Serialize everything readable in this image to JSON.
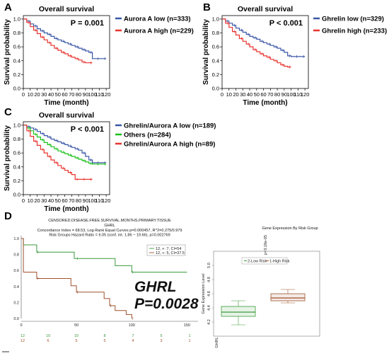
{
  "colors": {
    "low": "#3a57a7",
    "high": "#e8342f",
    "others": "#19c119",
    "d_low": "#3c9a3c",
    "d_high": "#a0522d"
  },
  "chart_data": [
    {
      "panel": "A",
      "type": "line",
      "title": "Overall survival",
      "xlabel": "Time (month)",
      "ylabel": "Survival probability",
      "xlim": [
        0,
        125
      ],
      "ylim": [
        0,
        1.05
      ],
      "xticks": [
        "0",
        "10",
        "20",
        "30",
        "40",
        "50",
        "60",
        "70",
        "80",
        "90",
        "100",
        "110",
        "120"
      ],
      "yticks": [
        "0.0",
        "0.2",
        "0.4",
        "0.6",
        "0.8",
        "1.0"
      ],
      "pvalue": "P = 0.001",
      "series": [
        {
          "name": "Aurora A low (n=333)",
          "color": "#3a57a7",
          "x": [
            0,
            5,
            10,
            15,
            20,
            25,
            30,
            35,
            40,
            45,
            50,
            55,
            60,
            65,
            70,
            75,
            80,
            85,
            90,
            95,
            100,
            105,
            110,
            115,
            120
          ],
          "y": [
            1.0,
            0.97,
            0.93,
            0.9,
            0.86,
            0.83,
            0.8,
            0.78,
            0.75,
            0.72,
            0.7,
            0.68,
            0.66,
            0.64,
            0.62,
            0.6,
            0.58,
            0.56,
            0.54,
            0.52,
            0.43,
            0.43,
            0.43,
            0.43,
            0.43
          ]
        },
        {
          "name": "Aurora A high (n=229)",
          "color": "#e8342f",
          "x": [
            0,
            5,
            10,
            15,
            20,
            25,
            30,
            35,
            40,
            45,
            50,
            55,
            60,
            65,
            70,
            75,
            80,
            85,
            90,
            95,
            100
          ],
          "y": [
            1.0,
            0.95,
            0.89,
            0.84,
            0.79,
            0.74,
            0.7,
            0.66,
            0.62,
            0.58,
            0.55,
            0.52,
            0.5,
            0.47,
            0.45,
            0.43,
            0.41,
            0.38,
            0.37,
            0.37,
            0.37
          ]
        }
      ]
    },
    {
      "panel": "B",
      "type": "line",
      "title": "Overall survival",
      "xlabel": "Time (month)",
      "ylabel": "Survival probability",
      "xlim": [
        0,
        125
      ],
      "ylim": [
        0,
        1.05
      ],
      "xticks": [
        "0",
        "10",
        "20",
        "30",
        "40",
        "50",
        "60",
        "70",
        "80",
        "90",
        "100",
        "110",
        "120"
      ],
      "yticks": [
        "0.0",
        "0.2",
        "0.4",
        "0.6",
        "0.8",
        "1.0"
      ],
      "pvalue": "P < 0.001",
      "series": [
        {
          "name": "Ghrelin low (n=329)",
          "color": "#3a57a7",
          "x": [
            0,
            5,
            10,
            15,
            20,
            25,
            30,
            35,
            40,
            45,
            50,
            55,
            60,
            65,
            70,
            75,
            80,
            85,
            90,
            95,
            100,
            105,
            110,
            115,
            120
          ],
          "y": [
            1.0,
            0.97,
            0.94,
            0.91,
            0.87,
            0.84,
            0.81,
            0.78,
            0.75,
            0.73,
            0.71,
            0.68,
            0.66,
            0.64,
            0.62,
            0.6,
            0.58,
            0.55,
            0.52,
            0.47,
            0.46,
            0.46,
            0.46,
            0.46,
            0.46
          ]
        },
        {
          "name": "Ghrelin high (n=233)",
          "color": "#e8342f",
          "x": [
            0,
            5,
            10,
            15,
            20,
            25,
            30,
            35,
            40,
            45,
            50,
            55,
            60,
            65,
            70,
            75,
            80,
            85,
            90,
            95,
            100
          ],
          "y": [
            1.0,
            0.94,
            0.88,
            0.82,
            0.77,
            0.72,
            0.68,
            0.64,
            0.6,
            0.56,
            0.53,
            0.5,
            0.47,
            0.45,
            0.42,
            0.4,
            0.37,
            0.34,
            0.32,
            0.31,
            0.31
          ]
        }
      ]
    },
    {
      "panel": "C",
      "type": "line",
      "title": "Overall survival",
      "xlabel": "Time (month)",
      "ylabel": "Survival probability",
      "xlim": [
        0,
        125
      ],
      "ylim": [
        0,
        1.05
      ],
      "xticks": [
        "0",
        "10",
        "20",
        "30",
        "40",
        "50",
        "60",
        "70",
        "80",
        "90",
        "100",
        "110",
        "120"
      ],
      "yticks": [
        "0.0",
        "0.2",
        "0.4",
        "0.6",
        "0.8",
        "1.0"
      ],
      "pvalue": "P < 0.001",
      "series": [
        {
          "name": "Ghrelin/Aurora A low (n=189)",
          "color": "#3a57a7",
          "x": [
            0,
            5,
            10,
            15,
            20,
            25,
            30,
            35,
            40,
            45,
            50,
            55,
            60,
            65,
            70,
            75,
            80,
            85,
            90,
            95,
            100,
            105,
            110,
            115,
            120
          ],
          "y": [
            1.0,
            0.98,
            0.96,
            0.94,
            0.91,
            0.88,
            0.85,
            0.83,
            0.8,
            0.78,
            0.76,
            0.74,
            0.72,
            0.7,
            0.68,
            0.66,
            0.64,
            0.6,
            0.55,
            0.5,
            0.46,
            0.46,
            0.46,
            0.46,
            0.46
          ]
        },
        {
          "name": "Others (n=284)",
          "color": "#19c119",
          "x": [
            0,
            5,
            10,
            15,
            20,
            25,
            30,
            35,
            40,
            45,
            50,
            55,
            60,
            65,
            70,
            75,
            80,
            85,
            90,
            95,
            100,
            105,
            110,
            115,
            120
          ],
          "y": [
            1.0,
            0.96,
            0.92,
            0.87,
            0.83,
            0.79,
            0.75,
            0.72,
            0.69,
            0.66,
            0.63,
            0.61,
            0.59,
            0.57,
            0.55,
            0.53,
            0.51,
            0.49,
            0.47,
            0.45,
            0.44,
            0.44,
            0.44,
            0.44,
            0.44
          ]
        },
        {
          "name": "Ghrelin/Aurora A high (n=89)",
          "color": "#e8342f",
          "x": [
            0,
            5,
            10,
            15,
            20,
            25,
            30,
            35,
            40,
            45,
            50,
            55,
            60,
            65,
            70,
            75,
            80,
            85,
            90,
            95,
            100
          ],
          "y": [
            1.0,
            0.92,
            0.84,
            0.77,
            0.71,
            0.65,
            0.6,
            0.55,
            0.5,
            0.46,
            0.42,
            0.38,
            0.35,
            0.32,
            0.29,
            0.22,
            0.22,
            0.22,
            0.22,
            0.22,
            0.22
          ]
        }
      ]
    },
    {
      "panel": "D-left",
      "type": "line",
      "title": "CENSORED.DISEASE.FREE.SURVIVAL.MONTHS.PRIMARY.TISSUE",
      "subtitle": "GHRL",
      "stats": [
        "Concordance Index = 68.53, Log-Rank Equal Curves p=0.000457, R^2=0.275/0.979",
        "Risk Groups Hazard Ratio = 6.05 (conf. int. 1.86 ~ 19.66), p=0.002769"
      ],
      "xlim": [
        0,
        160
      ],
      "ylim": [
        0,
        1.0
      ],
      "xticks": [
        "0",
        "50",
        "100",
        "150"
      ],
      "yticks": [
        "1.0",
        "0.8",
        "0.6",
        "0.4",
        "0.2",
        "0.0"
      ],
      "annotation_gene": "GHRL",
      "annotation_p": "P=0.0028",
      "legend": [
        "12, +: 7, CI=54",
        "12, +: 5, CI=37.5"
      ],
      "risk_table_low": [
        "12",
        "10",
        "10",
        "8",
        "7",
        "5",
        "1"
      ],
      "risk_table_high": [
        "12",
        "6",
        "5",
        "5",
        "4",
        "3",
        "1"
      ],
      "series": [
        {
          "name": "12, +: 7, CI=54",
          "color": "#3c9a3c",
          "x": [
            0,
            2,
            5,
            14,
            45,
            48,
            50,
            85,
            95,
            100,
            110,
            150
          ],
          "y": [
            1.0,
            0.92,
            0.92,
            0.83,
            0.83,
            0.75,
            0.75,
            0.66,
            0.66,
            0.58,
            0.58,
            0.58
          ]
        },
        {
          "name": "12, +: 5, CI=37.5",
          "color": "#a0522d",
          "x": [
            0,
            2,
            5,
            14,
            30,
            45,
            50,
            60,
            75,
            80,
            85,
            95,
            100
          ],
          "y": [
            1.0,
            0.58,
            0.58,
            0.5,
            0.5,
            0.41,
            0.33,
            0.33,
            0.25,
            0.16,
            0.1,
            0.05,
            0.0
          ]
        }
      ]
    },
    {
      "panel": "D-right",
      "type": "box",
      "title": "Gene Expression By Risk Group",
      "pvalue_label": "p=3.18e-05",
      "ylabel": "Gene Expression Level",
      "xlabel": "GHRL",
      "ylim": [
        4.0,
        5.2
      ],
      "yticks": [
        "4.2",
        "4.4",
        "4.6",
        "4.8",
        "5.0"
      ],
      "legend": [
        "2-Low Risk",
        "1-High Risk"
      ],
      "boxes": [
        {
          "name": "2-Low Risk",
          "color": "#3c9a3c",
          "min": 4.16,
          "q1": 4.28,
          "median": 4.34,
          "q3": 4.42,
          "max": 4.5
        },
        {
          "name": "1-High Risk",
          "color": "#a0522d",
          "min": 4.47,
          "q1": 4.5,
          "median": 4.54,
          "q3": 4.6,
          "max": 4.66
        }
      ]
    }
  ]
}
